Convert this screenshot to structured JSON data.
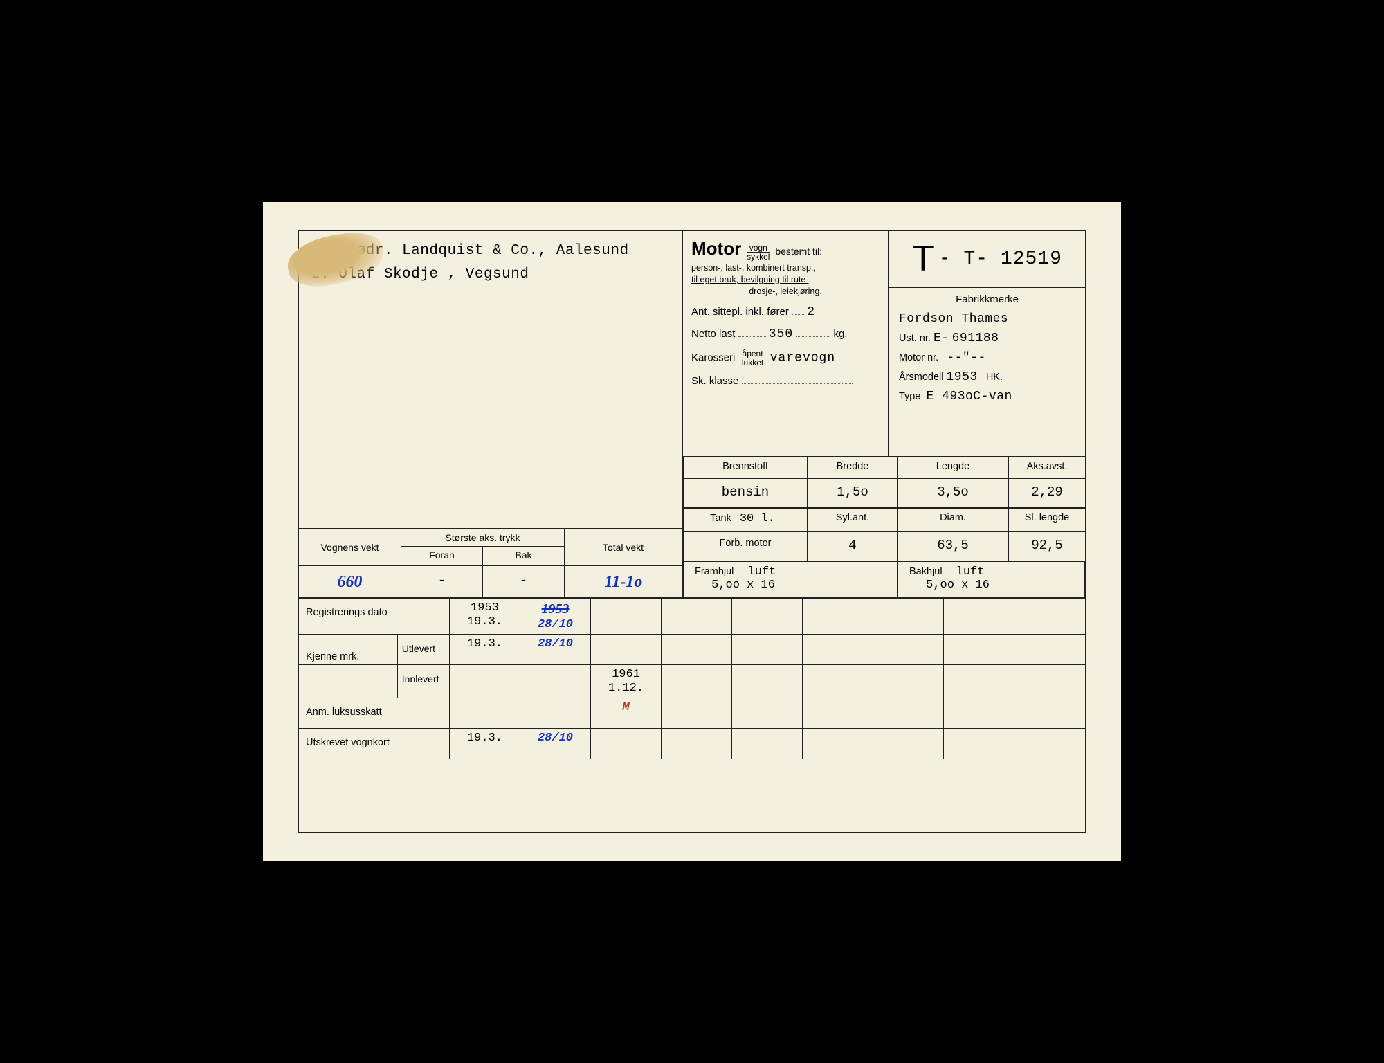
{
  "owners": [
    "1. Brødr. Landquist & Co., Aalesund",
    "2. Olaf Skodje , Vegsund"
  ],
  "motor_block": {
    "title": "Motor",
    "frac_top": "vogn",
    "frac_bot": "sykkel",
    "bestemt": "bestemt til:",
    "sub1": "person-, last-, kombinert transp.,",
    "sub2": "til eget bruk, bevilgning til rute-,",
    "sub3": "drosje-, leiekjøring.",
    "seats_lbl": "Ant. sittepl. inkl. fører",
    "seats": "2",
    "netto_lbl": "Netto last",
    "netto": "350",
    "netto_unit": "kg.",
    "karos_lbl": "Karosseri",
    "karos_frac_top": "åpent",
    "karos_frac_bot": "lukket",
    "karos_val": "varevogn",
    "sk_lbl": "Sk. klasse"
  },
  "plate": {
    "prefix": "T",
    "dash": "- T-",
    "number": "12519"
  },
  "fabrikk": {
    "hdr": "Fabrikkmerke",
    "make": "Fordson Thames",
    "ust_lbl": "Ust. nr.",
    "ust_prefix": "E-",
    "ust": "691188",
    "motor_lbl": "Motor nr.",
    "motor": "--\"--",
    "year_lbl": "Årsmodell",
    "year": "1953",
    "hk_lbl": "HK.",
    "type_lbl": "Type",
    "type": "E 493oC-van"
  },
  "spec": {
    "h_brenn": "Brennstoff",
    "v_brenn": "bensin",
    "h_bredde": "Bredde",
    "v_bredde": "1,5o",
    "h_lengde": "Lengde",
    "v_lengde": "3,5o",
    "h_aks": "Aks.avst.",
    "v_aks": "2,29",
    "h_tank": "Tank",
    "v_tankcap": "30 l.",
    "h_syl": "Syl.ant.",
    "h_diam": "Diam.",
    "h_sl": "Sl. lengde",
    "h_forb": "Forb. motor",
    "v_syl": "4",
    "v_diam": "63,5",
    "v_sl": "92,5"
  },
  "weight": {
    "h_vv": "Vognens vekt",
    "h_aks": "Største aks. trykk",
    "h_for": "Foran",
    "h_bak": "Bak",
    "h_tv": "Total vekt",
    "v_vv": "660",
    "v_for": "-",
    "v_bak": "-",
    "v_tv": "11-1o"
  },
  "wheels": {
    "h_fram": "Framhjul",
    "v_fram_t": "luft",
    "v_fram": "5,oo x 16",
    "h_bak": "Bakhjul",
    "v_bak_t": "luft",
    "v_bak": "5,oo x 16"
  },
  "reg": {
    "l_reg": "Registrerings dato",
    "l_kj": "Kjenne mrk.",
    "l_utl": "Utlevert",
    "l_inn": "Innlevert",
    "l_anm": "Anm. luksusskatt",
    "l_utsk": "Utskrevet vognkort",
    "rows": {
      "regdato": [
        "1953\n19.3.",
        "1953\n28/10",
        "",
        "",
        "",
        "",
        "",
        "",
        ""
      ],
      "utlevert": [
        "19.3.",
        "28/10",
        "",
        "",
        "",
        "",
        "",
        "",
        ""
      ],
      "innlevert": [
        "",
        "",
        "1961\n1.12.",
        "",
        "",
        "",
        "",
        "",
        ""
      ],
      "anm": [
        "",
        "",
        "M",
        "",
        "",
        "",
        "",
        "",
        ""
      ],
      "utskrevet": [
        "19.3.",
        "28/10",
        "",
        "",
        "",
        "",
        "",
        "",
        ""
      ]
    },
    "handwritten_cells": [
      "regdato.1",
      "utlevert.1",
      "anm.2",
      "utskrevet.1"
    ],
    "red_cells": [
      "anm.2"
    ]
  },
  "colors": {
    "paper": "#f4f0e0",
    "ink": "#222222",
    "handwrite_blue": "#1030c0",
    "handwrite_red": "#c83020",
    "stain": "#d9b97a"
  }
}
